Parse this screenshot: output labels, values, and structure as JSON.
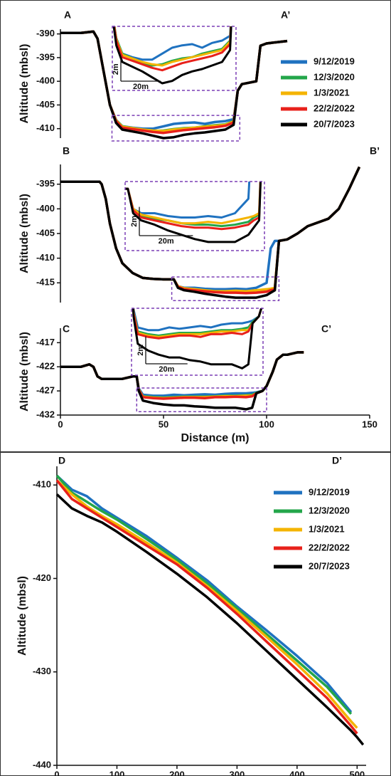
{
  "chart_data": [
    {
      "type": "line",
      "xlim": [
        0,
        150
      ],
      "xticks": [
        0,
        50,
        100,
        150
      ],
      "xlabel": "Distance (m)",
      "legend": "right",
      "series": [
        {
          "name": "9/12/2019",
          "color": "#1f72c0"
        },
        {
          "name": "12/3/2020",
          "color": "#23a64a"
        },
        {
          "name": "1/3/2021",
          "color": "#f4b400"
        },
        {
          "name": "22/2/2022",
          "color": "#e8211b"
        },
        {
          "name": "20/7/2023",
          "color": "#000000"
        }
      ],
      "panels": [
        {
          "label": "A",
          "label_end": "A’",
          "ylabel": "Altitude (mbsl)",
          "ylim": [
            -412,
            -389
          ],
          "yticks": [
            -390,
            -395,
            -400,
            -405,
            -410
          ],
          "x": [
            0,
            10,
            16,
            18,
            21,
            24,
            27,
            30,
            35,
            40,
            45,
            50,
            55,
            60,
            65,
            70,
            75,
            80,
            84,
            86,
            88,
            95,
            97,
            100,
            110
          ],
          "values": [
            [
              -389.8,
              -389.8,
              -389.5,
              -391,
              -398,
              -405,
              -408.2,
              -409.5,
              -409.8,
              -410,
              -410,
              -409.5,
              -409,
              -408.8,
              -408.7,
              -409,
              -408.6,
              -408.4,
              -408,
              -402,
              -400.6,
              -400,
              -392.5,
              -392,
              -391.5
            ],
            [
              -389.8,
              -389.8,
              -389.5,
              -391,
              -398,
              -405,
              -408.2,
              -409.5,
              -409.9,
              -410.3,
              -410.5,
              -410.4,
              -410.1,
              -409.9,
              -409.8,
              -409.5,
              -409.3,
              -409.1,
              -408.4,
              -402,
              -400.6,
              -400,
              -392.5,
              -392,
              -391.5
            ],
            [
              -389.8,
              -389.8,
              -389.5,
              -391,
              -398,
              -405,
              -408.3,
              -409.6,
              -409.9,
              -410.2,
              -410.4,
              -410.5,
              -410.2,
              -410,
              -409.8,
              -409.6,
              -409.4,
              -409.2,
              -408.5,
              -402,
              -400.6,
              -400,
              -392.5,
              -392,
              -391.5
            ],
            [
              -389.8,
              -389.8,
              -389.5,
              -391,
              -398,
              -405,
              -408.4,
              -409.8,
              -410.1,
              -410.4,
              -410.7,
              -410.9,
              -410.6,
              -410.3,
              -410.1,
              -409.9,
              -409.7,
              -409.4,
              -408.7,
              -402,
              -400.6,
              -400,
              -392.5,
              -392,
              -391.5
            ],
            [
              -389.8,
              -389.8,
              -389.5,
              -391,
              -398,
              -405,
              -408.8,
              -410.2,
              -410.6,
              -411,
              -411.5,
              -412,
              -411.8,
              -411.3,
              -411,
              -410.8,
              -410.5,
              -410.2,
              -409.2,
              -402,
              -400.6,
              -400,
              -392.5,
              -392,
              -391.5
            ]
          ],
          "inset": {
            "xlim": [
              25,
              87
            ],
            "ylim": [
              -412.6,
              -407.2
            ],
            "scale_x": {
              "value": 20,
              "label": "20m"
            },
            "scale_y": {
              "value": 2,
              "label": "2m"
            }
          }
        },
        {
          "label": "B",
          "label_end": "B’",
          "ylabel": "Altitude (mbsl)",
          "ylim": [
            -419,
            -391
          ],
          "yticks": [
            -395,
            -400,
            -405,
            -410,
            -415
          ],
          "x": [
            0,
            10,
            19,
            20,
            22,
            24,
            27,
            30,
            35,
            40,
            45,
            50,
            55,
            57,
            60,
            65,
            70,
            75,
            80,
            85,
            90,
            95,
            100,
            102,
            104,
            106,
            110,
            115,
            120,
            130,
            135,
            140,
            145
          ],
          "values": [
            [
              -394.5,
              -394.5,
              -394.5,
              -395,
              -398,
              -403,
              -408,
              -411,
              -413,
              -414,
              -414.2,
              -414.3,
              -414.3,
              -415.7,
              -416,
              -416,
              -416.2,
              -416.3,
              -416.3,
              -416.2,
              -416.3,
              -416,
              -415,
              -408,
              -406.5,
              -406.5,
              -406.2,
              -405,
              -403.5,
              -402,
              -400,
              -396,
              -391.5
            ],
            [
              -394.5,
              -394.5,
              -394.5,
              -395,
              -398,
              -403,
              -408,
              -411,
              -413,
              -414,
              -414.2,
              -414.3,
              -414.3,
              -415.7,
              -416.2,
              -416.4,
              -416.5,
              -416.7,
              -416.8,
              -416.8,
              -416.9,
              -416.8,
              -416.6,
              -416.3,
              -416.1,
              -406.5,
              -406.2,
              -405,
              -403.5,
              -402,
              -400,
              -396,
              -391.5
            ],
            [
              -394.5,
              -394.5,
              -394.5,
              -395,
              -398,
              -403,
              -408,
              -411,
              -413,
              -414,
              -414.2,
              -414.3,
              -414.3,
              -415.7,
              -416.1,
              -416.3,
              -416.5,
              -416.7,
              -416.7,
              -416.6,
              -416.7,
              -416.5,
              -416.3,
              -416.2,
              -416,
              -406.5,
              -406.2,
              -405,
              -403.5,
              -402,
              -400,
              -396,
              -391.5
            ],
            [
              -394.5,
              -394.5,
              -394.5,
              -395,
              -398,
              -403,
              -408,
              -411,
              -413,
              -414,
              -414.2,
              -414.3,
              -414.3,
              -415.8,
              -416.3,
              -416.5,
              -416.7,
              -416.9,
              -417,
              -417,
              -417.1,
              -417,
              -416.8,
              -416.5,
              -416.3,
              -406.5,
              -406.2,
              -405,
              -403.5,
              -402,
              -400,
              -396,
              -391.5
            ],
            [
              -394.5,
              -394.5,
              -394.5,
              -395,
              -398,
              -403,
              -408,
              -411,
              -413,
              -414,
              -414.2,
              -414.3,
              -414.3,
              -416,
              -416.5,
              -416.8,
              -417.2,
              -417.5,
              -417.8,
              -418,
              -418,
              -418,
              -417.5,
              -417,
              -416.5,
              -406.5,
              -406.2,
              -405,
              -403.5,
              -402,
              -400,
              -396,
              -391.5
            ]
          ],
          "inset": {
            "xlim": [
              54,
              106
            ],
            "ylim": [
              -418.6,
              -413.8
            ],
            "scale_x": {
              "value": 20,
              "label": "20m"
            },
            "scale_y": {
              "value": 2,
              "label": "2m"
            }
          }
        },
        {
          "label": "C",
          "label_end": "C’",
          "ylabel": "Altitude (mbsl)",
          "ylim": [
            -432,
            -414
          ],
          "yticks": [
            -417,
            -422,
            -427,
            -432
          ],
          "x": [
            0,
            10,
            14,
            16,
            18,
            20,
            25,
            30,
            35,
            37,
            38,
            40,
            45,
            50,
            55,
            60,
            65,
            70,
            75,
            80,
            85,
            90,
            93,
            95,
            98,
            100,
            103,
            105,
            108,
            110,
            115,
            118
          ],
          "values": [
            [
              -422,
              -422,
              -421.5,
              -422,
              -424,
              -424.5,
              -424.5,
              -424.5,
              -424,
              -424,
              -426.5,
              -427.8,
              -428,
              -428,
              -427.8,
              -427.9,
              -427.8,
              -427.7,
              -427.8,
              -427.6,
              -427.5,
              -427.5,
              -427.4,
              -427.3,
              -427,
              -426,
              -423,
              -420.5,
              -419.5,
              -419.5,
              -419,
              -419
            ],
            [
              -422,
              -422,
              -421.5,
              -422,
              -424,
              -424.5,
              -424.5,
              -424.5,
              -424,
              -424,
              -426.7,
              -428.1,
              -428.3,
              -428.4,
              -428.3,
              -428.2,
              -428.2,
              -428.2,
              -428.1,
              -428,
              -428,
              -427.9,
              -427.8,
              -427.4,
              -427,
              -426,
              -423,
              -420.5,
              -419.5,
              -419.5,
              -419,
              -419
            ],
            [
              -422,
              -422,
              -421.5,
              -422,
              -424,
              -424.5,
              -424.5,
              -424.5,
              -424,
              -424,
              -426.7,
              -428.2,
              -428.4,
              -428.5,
              -428.4,
              -428.3,
              -428.3,
              -428.3,
              -428.2,
              -428.1,
              -428.1,
              -428,
              -428,
              -427.5,
              -427,
              -426,
              -423,
              -420.5,
              -419.5,
              -419.5,
              -419,
              -419
            ],
            [
              -422,
              -422,
              -421.5,
              -422,
              -424,
              -424.5,
              -424.5,
              -424.5,
              -424,
              -424,
              -426.8,
              -428.3,
              -428.5,
              -428.6,
              -428.5,
              -428.4,
              -428.4,
              -428.5,
              -428.3,
              -428.3,
              -428.2,
              -428.3,
              -428.1,
              -427.5,
              -427,
              -426,
              -423,
              -420.5,
              -419.5,
              -419.5,
              -419,
              -419
            ],
            [
              -422,
              -422,
              -421.5,
              -422,
              -424,
              -424.5,
              -424.5,
              -424.5,
              -424,
              -424,
              -427,
              -429,
              -429.5,
              -429.8,
              -430,
              -430,
              -430.2,
              -430.3,
              -430.5,
              -430.5,
              -430.5,
              -430.8,
              -430.5,
              -427.5,
              -427,
              -426,
              -423,
              -420.5,
              -419.5,
              -419.5,
              -419,
              -419
            ]
          ],
          "inset": {
            "xlim": [
              37,
              100
            ],
            "ylim": [
              -431.3,
              -426.4
            ],
            "scale_x": {
              "value": 20,
              "label": "20m"
            },
            "scale_y": {
              "value": 2,
              "label": "2m"
            }
          }
        }
      ]
    },
    {
      "type": "line",
      "label": "D",
      "label_end": "D’",
      "xlabel": "Distance (m)",
      "ylabel": "Altitude (mbsl)",
      "xlim": [
        0,
        515
      ],
      "xticks": [
        0,
        100,
        200,
        300,
        400,
        500
      ],
      "ylim": [
        -440,
        -408
      ],
      "yticks": [
        -410,
        -420,
        -430,
        -440
      ],
      "legend": "upper right",
      "x": [
        0,
        25,
        50,
        75,
        100,
        150,
        200,
        250,
        300,
        350,
        400,
        450,
        490,
        500,
        510
      ],
      "series": [
        {
          "name": "9/12/2019",
          "color": "#1f72c0",
          "values": [
            -409,
            -410.5,
            -411.2,
            -412.5,
            -413.5,
            -415.5,
            -417.8,
            -420.2,
            -423,
            -425.6,
            -428.3,
            -431.2,
            -434.3,
            null,
            null
          ]
        },
        {
          "name": "12/3/2020",
          "color": "#23a64a",
          "values": [
            -409,
            -410.8,
            -411.8,
            -412.8,
            -413.7,
            -415.8,
            -418,
            -420.5,
            -423.2,
            -426,
            -428.8,
            -431.6,
            -434.5,
            null,
            null
          ]
        },
        {
          "name": "1/3/2021",
          "color": "#f4b400",
          "values": [
            -409.5,
            -411,
            -412.3,
            -413.3,
            -414.2,
            -416.2,
            -418.3,
            -420.8,
            -423.5,
            -426.3,
            -429.2,
            -432.3,
            -435.3,
            -436,
            null
          ]
        },
        {
          "name": "22/2/2022",
          "color": "#e8211b",
          "values": [
            -409.5,
            -411.5,
            -412.5,
            -413.5,
            -414.5,
            -416.5,
            -418.5,
            -421,
            -423.8,
            -426.8,
            -429.8,
            -432.8,
            -435.8,
            -436.6,
            null
          ]
        },
        {
          "name": "20/7/2023",
          "color": "#000000",
          "values": [
            -411,
            -412.5,
            -413.3,
            -414,
            -415,
            -417.2,
            -419.5,
            -422,
            -424.8,
            -427.8,
            -430.8,
            -433.8,
            -436.3,
            -437,
            -437.8
          ]
        }
      ]
    }
  ]
}
